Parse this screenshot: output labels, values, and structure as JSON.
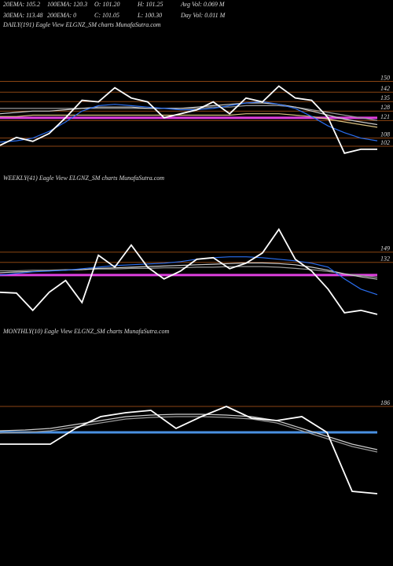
{
  "header": {
    "items": [
      [
        "20EMA: 105.2",
        "100EMA: 120.3",
        "O: 101.20",
        "H: 101.25",
        "Avg Vol: 0.069 M"
      ],
      [
        "30EMA: 113.48",
        "200EMA: 0",
        "C: 101.05",
        "L: 100.30",
        "Day Vol: 0.011 M"
      ]
    ]
  },
  "chart_data": [
    {
      "type": "line",
      "title": "DAILY(191) Eagle  View  ELGNZ_SM charts MunafaSutra.com",
      "ylim": [
        88,
        187
      ],
      "yticks": [
        150,
        142,
        135,
        128,
        121,
        108,
        102
      ],
      "grid": true,
      "grid_color": "#8b4513",
      "reference_lines": [
        {
          "value": 123,
          "color": "#e040e0"
        }
      ],
      "series": [
        {
          "color": "#d8c080",
          "values": [
            124,
            124,
            125,
            125,
            125,
            125,
            125,
            125,
            125,
            125,
            125,
            125,
            125,
            125,
            125,
            126,
            126,
            126,
            125,
            124,
            122,
            120,
            118,
            116
          ]
        },
        {
          "color": "#999999",
          "values": [
            130,
            130,
            130,
            130,
            130,
            130,
            130,
            130,
            130,
            130,
            130,
            130,
            130,
            131,
            131,
            132,
            132,
            132,
            131,
            129,
            127,
            125,
            123,
            121
          ]
        },
        {
          "color": "#cccccc",
          "values": [
            126,
            127,
            128,
            128,
            129,
            130,
            131,
            131,
            131,
            130,
            130,
            130,
            131,
            132,
            133,
            134,
            134,
            133,
            131,
            128,
            125,
            122,
            120,
            118
          ]
        },
        {
          "color": "#2a6ef0",
          "values": [
            105,
            106,
            108,
            113,
            120,
            128,
            132,
            133,
            132,
            131,
            130,
            129,
            129,
            130,
            132,
            134,
            135,
            133,
            130,
            124,
            117,
            112,
            108,
            106
          ]
        },
        {
          "color": "#ffffff",
          "values": [
            102.6,
            108.5,
            105.6,
            111.4,
            123.1,
            136,
            134.8,
            145.3,
            137.7,
            134.8,
            123.1,
            126,
            128.9,
            134.8,
            126,
            137.7,
            134.8,
            146.5,
            137.7,
            136,
            123.1,
            96.8,
            99.7,
            99.7
          ]
        }
      ]
    },
    {
      "type": "line",
      "title": "WEEKLY(41) Eagle  View  ELGNZ_SM charts MunafaSutra.com",
      "ylim": [
        39,
        261
      ],
      "yticks": [
        149,
        132
      ],
      "grid": true,
      "grid_color": "#8b4513",
      "reference_lines": [
        {
          "value": 111,
          "color": "#e040e0"
        }
      ],
      "series": [
        {
          "color": "#999999",
          "values": [
            118,
            118,
            119,
            119,
            120,
            120,
            121,
            121,
            122,
            122,
            123,
            123,
            124,
            124,
            125,
            125,
            125,
            124,
            122,
            120,
            117,
            113,
            110,
            107
          ]
        },
        {
          "color": "#cccccc",
          "values": [
            115,
            116,
            117,
            118,
            119,
            120,
            122,
            123,
            124,
            125,
            126,
            127,
            128,
            129,
            130,
            131,
            131,
            130,
            128,
            124,
            119,
            113,
            108,
            104
          ]
        },
        {
          "color": "#2a6ef0",
          "values": [
            111.1,
            113.7,
            116.3,
            117.6,
            118.9,
            121.5,
            124.2,
            126.8,
            128.1,
            129.4,
            130.7,
            133.3,
            137.2,
            139.8,
            141.2,
            141.2,
            139.8,
            137.2,
            134.6,
            130.7,
            124.2,
            104.6,
            87.6,
            78.4
          ]
        },
        {
          "color": "#ffffff",
          "values": [
            82.3,
            81,
            52.3,
            82.3,
            101.9,
            65.3,
            143.8,
            124.2,
            160.8,
            124.2,
            104.6,
            117.6,
            137.2,
            139.8,
            121.5,
            130.7,
            147.7,
            186.9,
            137.2,
            117.6,
            87.6,
            48.3,
            52.3,
            45.7
          ]
        }
      ]
    },
    {
      "type": "line",
      "title": "MONTHLY(10) Eagle  View  ELGNZ_SM charts MunafaSutra.com",
      "ylim": [
        13,
        273
      ],
      "yticks": [
        186
      ],
      "grid": true,
      "grid_color": "#8b4513",
      "reference_lines": [
        {
          "value": 153,
          "color": "#4a90e2"
        }
      ],
      "series": [
        {
          "color": "#999999",
          "values": [
            152,
            153,
            155,
            160,
            165,
            170,
            172,
            173,
            173,
            172,
            170,
            165,
            155,
            145,
            135,
            128
          ]
        },
        {
          "color": "#cccccc",
          "values": [
            155,
            156,
            158,
            163,
            168,
            173,
            175,
            176,
            176,
            175,
            173,
            168,
            158,
            148,
            138,
            131
          ]
        },
        {
          "color": "#ffffff",
          "values": [
            138,
            138,
            138,
            158,
            173,
            178,
            181,
            158,
            173,
            186,
            171,
            168,
            173,
            153,
            78,
            75
          ]
        }
      ]
    }
  ]
}
